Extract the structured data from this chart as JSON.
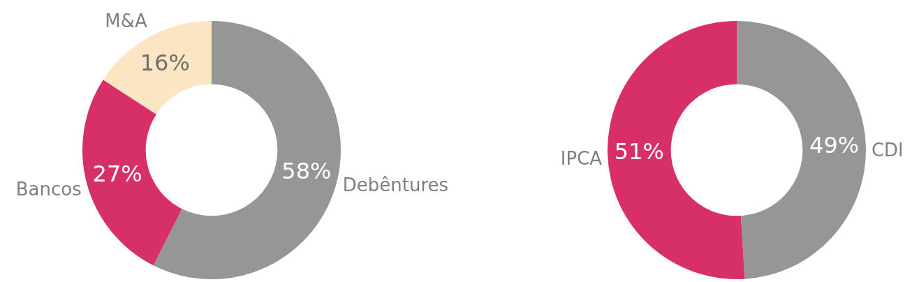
{
  "chart_data": [
    {
      "type": "donut",
      "categories": [
        "Debêntures",
        "Bancos",
        "M&A"
      ],
      "values": [
        58,
        27,
        16
      ],
      "value_labels": [
        "58%",
        "27%",
        "16%"
      ],
      "colors": [
        "#969696",
        "#d63066",
        "#fce5c2"
      ],
      "legend": false
    },
    {
      "type": "donut",
      "categories": [
        "CDI",
        "IPCA"
      ],
      "values": [
        49,
        51
      ],
      "value_labels": [
        "49%",
        "51%"
      ],
      "colors": [
        "#969696",
        "#d63066"
      ],
      "legend": false
    }
  ]
}
